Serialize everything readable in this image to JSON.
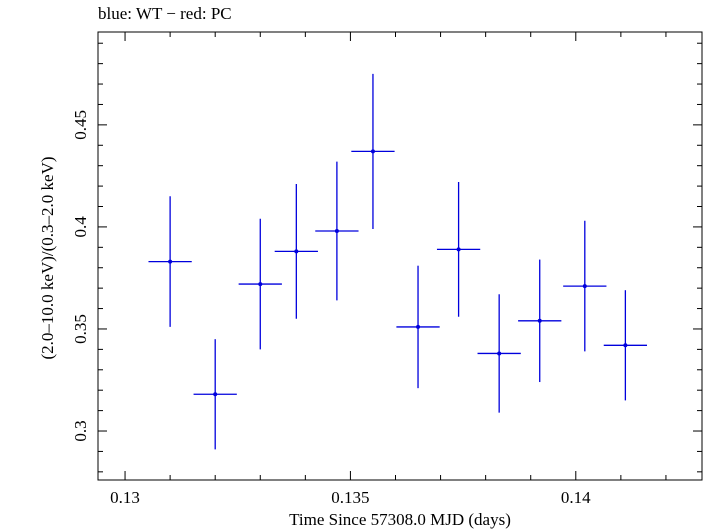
{
  "chart_data": {
    "type": "scatter",
    "title": "blue: WT − red: PC",
    "xlabel": "Time Since 57308.0 MJD (days)",
    "ylabel": "(2.0–10.0 keV)/(0.3–2.0 keV)",
    "xlim": [
      0.1294,
      0.1428
    ],
    "ylim": [
      0.276,
      0.4955
    ],
    "x_ticks": [
      0.13,
      0.135,
      0.14
    ],
    "x_tick_labels": [
      "0.13",
      "0.135",
      "0.14"
    ],
    "y_ticks": [
      0.3,
      0.35,
      0.4,
      0.45
    ],
    "y_tick_labels": [
      "0.3",
      "0.35",
      "0.4",
      "0.45"
    ],
    "grid": false,
    "series": [
      {
        "color": "#0000dd",
        "points": [
          {
            "x": 0.131,
            "xerr": 0.00048,
            "y": 0.383,
            "yerr": 0.032
          },
          {
            "x": 0.132,
            "xerr": 0.00048,
            "y": 0.318,
            "yerr": 0.027
          },
          {
            "x": 0.133,
            "xerr": 0.00048,
            "y": 0.372,
            "yerr": 0.032
          },
          {
            "x": 0.1338,
            "xerr": 0.00048,
            "y": 0.388,
            "yerr": 0.033
          },
          {
            "x": 0.1347,
            "xerr": 0.00048,
            "y": 0.398,
            "yerr": 0.034
          },
          {
            "x": 0.1355,
            "xerr": 0.00048,
            "y": 0.437,
            "yerr": 0.038
          },
          {
            "x": 0.1365,
            "xerr": 0.00048,
            "y": 0.351,
            "yerr": 0.03
          },
          {
            "x": 0.1374,
            "xerr": 0.00048,
            "y": 0.389,
            "yerr": 0.033
          },
          {
            "x": 0.1383,
            "xerr": 0.00048,
            "y": 0.338,
            "yerr": 0.029
          },
          {
            "x": 0.1392,
            "xerr": 0.00048,
            "y": 0.354,
            "yerr": 0.03
          },
          {
            "x": 0.1402,
            "xerr": 0.00048,
            "y": 0.371,
            "yerr": 0.032
          },
          {
            "x": 0.1411,
            "xerr": 0.00048,
            "y": 0.342,
            "yerr": 0.027
          }
        ]
      }
    ]
  }
}
